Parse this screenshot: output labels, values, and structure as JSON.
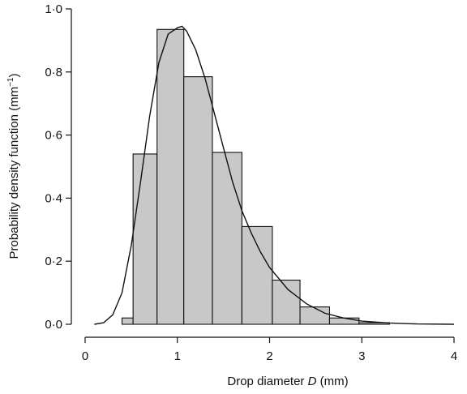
{
  "chart_data": {
    "type": "bar",
    "subtype": "histogram-with-density-curve",
    "xlabel": {
      "prefix": "Drop diameter ",
      "var": "D",
      "suffix": " (mm)"
    },
    "ylabel": {
      "main": "Probability density function (mm",
      "sup": "−1",
      "close": ")"
    },
    "xlim": [
      0,
      4
    ],
    "ylim": [
      0,
      1
    ],
    "x_ticks": [
      {
        "value": 0,
        "label": "0"
      },
      {
        "value": 1,
        "label": "1"
      },
      {
        "value": 2,
        "label": "2"
      },
      {
        "value": 3,
        "label": "3"
      },
      {
        "value": 4,
        "label": "4"
      }
    ],
    "y_ticks": [
      {
        "value": 0,
        "label": "0·0"
      },
      {
        "value": 0.2,
        "label": "0·2"
      },
      {
        "value": 0.4,
        "label": "0·4"
      },
      {
        "value": 0.6,
        "label": "0·6"
      },
      {
        "value": 0.8,
        "label": "0·8"
      },
      {
        "value": 1.0,
        "label": "1·0"
      }
    ],
    "bins": [
      {
        "x0": 0.4,
        "x1": 0.52,
        "value": 0.02
      },
      {
        "x0": 0.52,
        "x1": 0.78,
        "value": 0.54
      },
      {
        "x0": 0.78,
        "x1": 1.07,
        "value": 0.935
      },
      {
        "x0": 1.07,
        "x1": 1.38,
        "value": 0.785
      },
      {
        "x0": 1.38,
        "x1": 1.7,
        "value": 0.545
      },
      {
        "x0": 1.7,
        "x1": 2.03,
        "value": 0.31
      },
      {
        "x0": 2.03,
        "x1": 2.33,
        "value": 0.14
      },
      {
        "x0": 2.33,
        "x1": 2.65,
        "value": 0.055
      },
      {
        "x0": 2.65,
        "x1": 2.97,
        "value": 0.02
      },
      {
        "x0": 2.97,
        "x1": 3.3,
        "value": 0.005
      }
    ],
    "curve": {
      "x": [
        0.1,
        0.2,
        0.3,
        0.4,
        0.5,
        0.6,
        0.7,
        0.8,
        0.9,
        1.0,
        1.05,
        1.1,
        1.2,
        1.3,
        1.4,
        1.5,
        1.6,
        1.7,
        1.8,
        1.9,
        2.0,
        2.2,
        2.4,
        2.6,
        2.8,
        3.0,
        3.3,
        3.6,
        4.0
      ],
      "y": [
        0.0,
        0.005,
        0.03,
        0.1,
        0.25,
        0.45,
        0.66,
        0.83,
        0.92,
        0.94,
        0.945,
        0.93,
        0.87,
        0.78,
        0.67,
        0.56,
        0.45,
        0.36,
        0.29,
        0.23,
        0.18,
        0.11,
        0.065,
        0.035,
        0.02,
        0.01,
        0.004,
        0.001,
        0.0
      ]
    },
    "grid": false,
    "legend": "none"
  }
}
